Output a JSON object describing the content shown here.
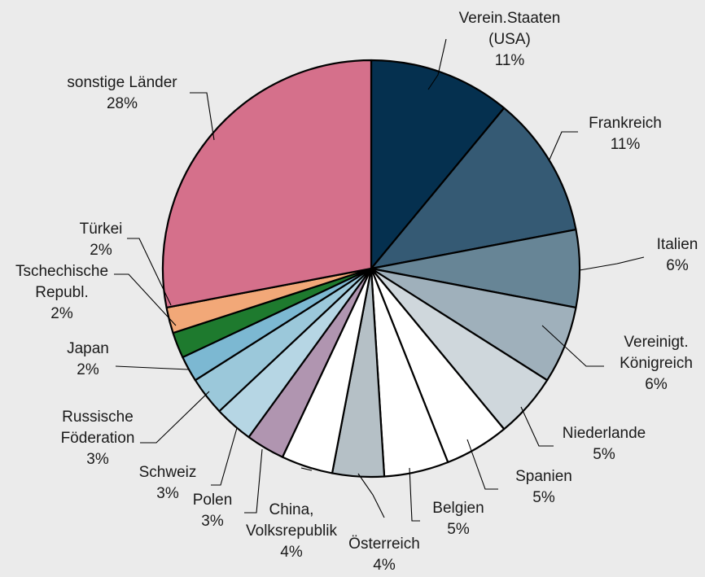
{
  "chart_data": {
    "type": "pie",
    "start_angle_deg": 0,
    "direction": "clockwise",
    "slices": [
      {
        "name": "Verein.Staaten (USA)",
        "lines": [
          "Verein.Staaten",
          "(USA)",
          "11%"
        ],
        "value": 11,
        "color": "#05304f"
      },
      {
        "name": "Frankreich",
        "lines": [
          "Frankreich",
          "11%"
        ],
        "value": 11,
        "color": "#355a74"
      },
      {
        "name": "Italien",
        "lines": [
          "Italien",
          "6%"
        ],
        "value": 6,
        "color": "#678596"
      },
      {
        "name": "Vereinigt. Königreich",
        "lines": [
          "Vereinigt.",
          "Königreich",
          "6%"
        ],
        "value": 6,
        "color": "#9fb0bb"
      },
      {
        "name": "Niederlande",
        "lines": [
          "Niederlande",
          "5%"
        ],
        "value": 5,
        "color": "#cfd7dc"
      },
      {
        "name": "Spanien",
        "lines": [
          "Spanien",
          "5%"
        ],
        "value": 5,
        "color": "#ffffff"
      },
      {
        "name": "Belgien",
        "lines": [
          "Belgien",
          "5%"
        ],
        "value": 5,
        "color": "#ffffff"
      },
      {
        "name": "Österreich",
        "lines": [
          "Österreich",
          "4%"
        ],
        "value": 4,
        "color": "#b5c0c6"
      },
      {
        "name": "China, Volksrepublik",
        "lines": [
          "China,",
          "Volksrepublik",
          "4%"
        ],
        "value": 4,
        "color": "#ffffff"
      },
      {
        "name": "Polen",
        "lines": [
          "Polen",
          "3%"
        ],
        "value": 3,
        "color": "#b095b0"
      },
      {
        "name": "Schweiz",
        "lines": [
          "Schweiz",
          "3%"
        ],
        "value": 3,
        "color": "#b6d6e4"
      },
      {
        "name": "Russische Föderation",
        "lines": [
          "Russische",
          "Föderation",
          "3%"
        ],
        "value": 3,
        "color": "#9bc8da"
      },
      {
        "name": "Japan",
        "lines": [
          "Japan",
          "2%"
        ],
        "value": 2,
        "color": "#7cb8d2"
      },
      {
        "name": "Tschechische Republ.",
        "lines": [
          "Tschechische",
          "Republ.",
          "2%"
        ],
        "value": 2,
        "color": "#1e7a2e"
      },
      {
        "name": "Türkei",
        "lines": [
          "Türkei",
          "2%"
        ],
        "value": 2,
        "color": "#f2a878"
      },
      {
        "name": "sonstige Länder",
        "lines": [
          "sonstige Länder",
          "28%"
        ],
        "value": 28,
        "color": "#d5708b"
      }
    ]
  }
}
